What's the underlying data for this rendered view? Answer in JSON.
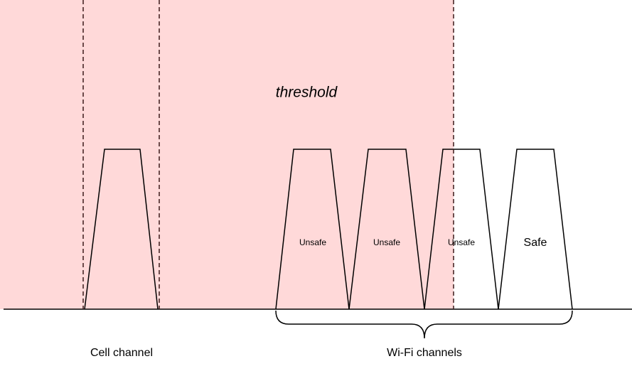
{
  "region": {
    "label": "threshold"
  },
  "channels": [
    {
      "label": "Unsafe"
    },
    {
      "label": "Unsafe"
    },
    {
      "label": "Unsafe"
    },
    {
      "label": "Safe"
    }
  ],
  "cell_label": "Cell channel",
  "wifi_label": "Wi-Fi channels"
}
